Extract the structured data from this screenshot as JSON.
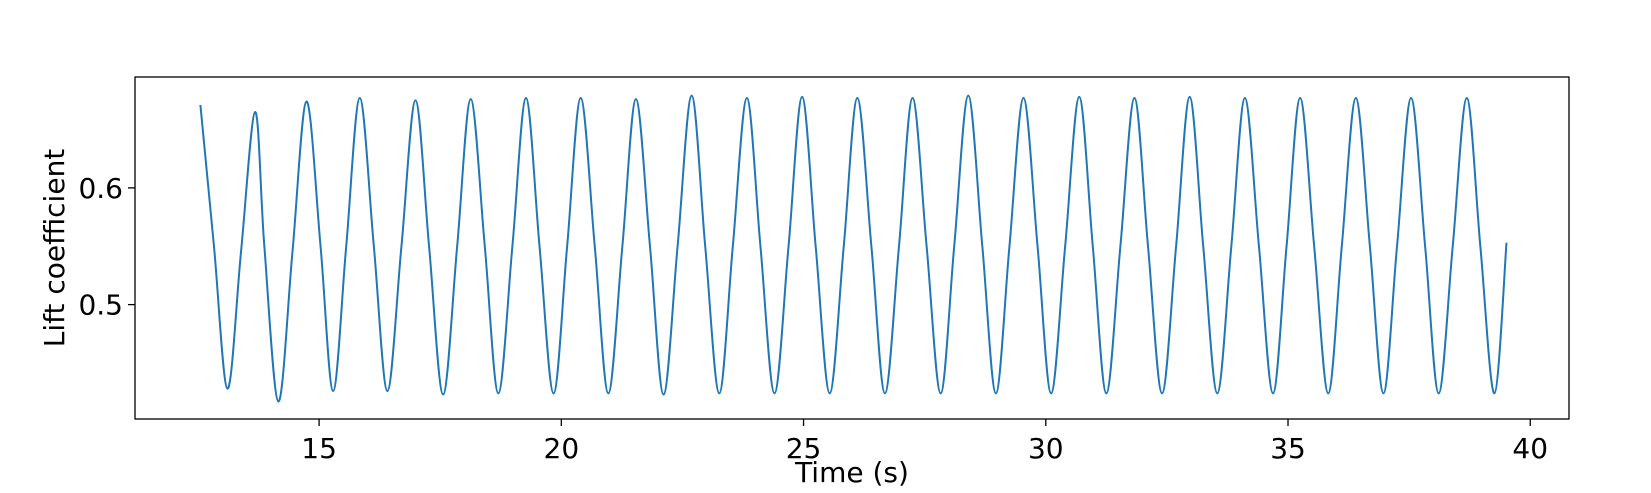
{
  "chart_data": {
    "type": "line",
    "title": "",
    "xlabel": "Time (s)",
    "ylabel": "Lift coefficient",
    "xlim": [
      11.2,
      40.8
    ],
    "ylim": [
      0.402,
      0.695
    ],
    "xticks": [
      15,
      20,
      25,
      30,
      35,
      40
    ],
    "yticks": [
      0.5,
      0.6
    ],
    "xtick_labels": [
      "15",
      "20",
      "25",
      "30",
      "35",
      "40"
    ],
    "ytick_labels": [
      "0.5",
      "0.6"
    ],
    "grid": false,
    "legend": "none",
    "line_color": "#1f77b4",
    "series": [
      {
        "x": [
          12.55,
          12.83,
          13.11,
          13.39,
          13.68,
          13.87,
          14.16,
          14.45,
          14.74,
          15.03,
          15.29,
          15.56,
          15.84,
          16.13,
          16.41,
          16.7,
          16.99,
          17.27,
          17.56,
          17.85,
          18.13,
          18.42,
          18.7,
          18.99,
          19.27,
          19.55,
          19.84,
          20.12,
          20.4,
          20.69,
          20.97,
          21.26,
          21.54,
          21.83,
          22.11,
          22.4,
          22.69,
          22.97,
          23.26,
          23.54,
          23.83,
          24.11,
          24.4,
          24.69,
          24.97,
          25.25,
          25.54,
          25.83,
          26.11,
          26.4,
          26.68,
          26.97,
          27.25,
          27.54,
          27.83,
          28.11,
          28.4,
          28.69,
          28.97,
          29.25,
          29.54,
          29.83,
          30.11,
          30.4,
          30.69,
          30.97,
          31.25,
          31.54,
          31.83,
          32.11,
          32.4,
          32.69,
          32.97,
          33.25,
          33.54,
          33.83,
          34.11,
          34.4,
          34.69,
          34.97,
          35.25,
          35.54,
          35.83,
          36.11,
          36.4,
          36.69,
          36.97,
          37.25,
          37.54,
          37.83,
          38.11,
          38.4,
          38.69,
          38.97,
          39.26,
          39.51
        ],
        "y": [
          0.671,
          0.55,
          0.428,
          0.546,
          0.665,
          0.55,
          0.417,
          0.545,
          0.674,
          0.55,
          0.426,
          0.55,
          0.677,
          0.55,
          0.426,
          0.55,
          0.675,
          0.55,
          0.423,
          0.55,
          0.676,
          0.55,
          0.424,
          0.55,
          0.677,
          0.55,
          0.424,
          0.55,
          0.677,
          0.55,
          0.424,
          0.55,
          0.676,
          0.55,
          0.423,
          0.55,
          0.679,
          0.55,
          0.424,
          0.55,
          0.677,
          0.55,
          0.424,
          0.55,
          0.678,
          0.55,
          0.424,
          0.55,
          0.677,
          0.55,
          0.424,
          0.55,
          0.677,
          0.55,
          0.424,
          0.55,
          0.679,
          0.55,
          0.424,
          0.55,
          0.677,
          0.55,
          0.424,
          0.55,
          0.678,
          0.55,
          0.424,
          0.55,
          0.677,
          0.55,
          0.424,
          0.55,
          0.678,
          0.55,
          0.424,
          0.55,
          0.677,
          0.55,
          0.424,
          0.55,
          0.677,
          0.55,
          0.424,
          0.55,
          0.677,
          0.55,
          0.424,
          0.55,
          0.677,
          0.55,
          0.424,
          0.55,
          0.677,
          0.55,
          0.424,
          0.553
        ]
      }
    ]
  }
}
